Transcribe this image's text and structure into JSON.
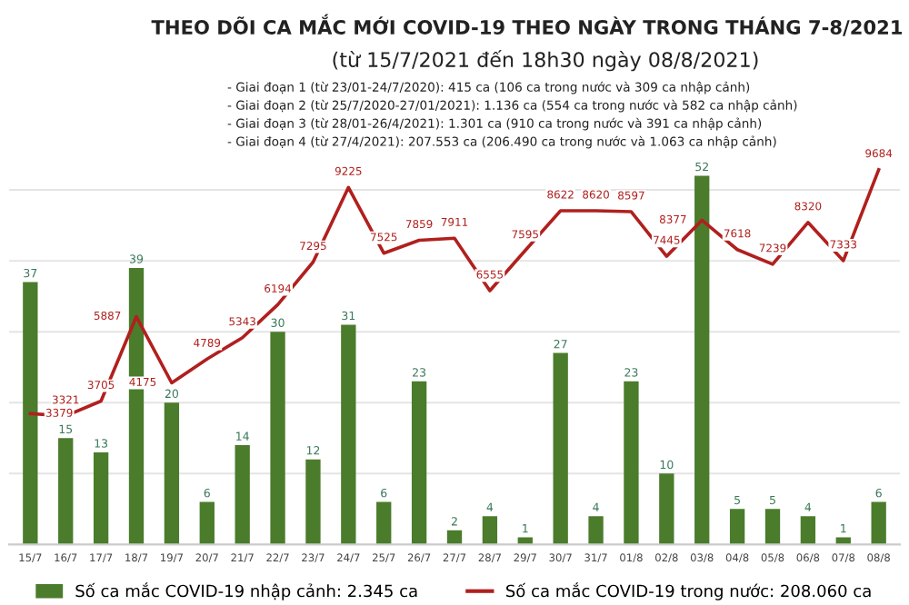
{
  "chart_data": {
    "type": "bar",
    "title": "THEO DÕI CA MẮC MỚI COVID-19 THEO NGÀY TRONG THÁNG 7-8/2021",
    "subtitle": "(từ 15/7/2021 đến 18h30 ngày 08/8/2021)",
    "annotations": [
      "- Giai đoạn 1 (từ 23/01-24/7/2020): 415 ca (106 ca trong nước và 309 ca nhập cảnh)",
      "- Giai đoạn 2 (từ 25/7/2020-27/01/2021): 1.136 ca (554 ca trong nước và 582 ca nhập cảnh)",
      "- Giai đoạn 3 (từ 28/01-26/4/2021): 1.301 ca (910 ca trong nước và 391 ca nhập cảnh)",
      "- Giai đoạn 4 (từ 27/4/2021): 207.553 ca (206.490 ca trong nước và 1.063 ca nhập cảnh)"
    ],
    "categories": [
      "15/7",
      "16/7",
      "17/7",
      "18/7",
      "19/7",
      "20/7",
      "21/7",
      "22/7",
      "23/7",
      "24/7",
      "25/7",
      "26/7",
      "27/7",
      "28/7",
      "29/7",
      "30/7",
      "31/7",
      "01/8",
      "02/8",
      "03/8",
      "04/8",
      "05/8",
      "06/8",
      "07/8",
      "08/8"
    ],
    "series": [
      {
        "name": "Số ca mắc COVID-19 nhập cảnh: 2.345 ca",
        "color": "#4a7c2c",
        "values": [
          37,
          15,
          13,
          39,
          20,
          6,
          14,
          30,
          12,
          31,
          6,
          23,
          2,
          4,
          1,
          27,
          4,
          23,
          10,
          52,
          5,
          5,
          4,
          1,
          6
        ]
      },
      {
        "name": "Số ca mắc COVID-19 trong nước: 208.060 ca",
        "type": "line",
        "axis": "y2",
        "color": "#b0201e",
        "values": [
          3379,
          3321,
          3705,
          5887,
          4175,
          4789,
          5343,
          6194,
          7295,
          9225,
          7525,
          7859,
          7911,
          6555,
          7595,
          8622,
          8620,
          8597,
          7445,
          8377,
          7618,
          7239,
          8320,
          7333,
          9684
        ]
      }
    ],
    "data_labels": true,
    "grid": "y",
    "legend": "bottom",
    "tick_labels": "x",
    "marker": "none"
  }
}
